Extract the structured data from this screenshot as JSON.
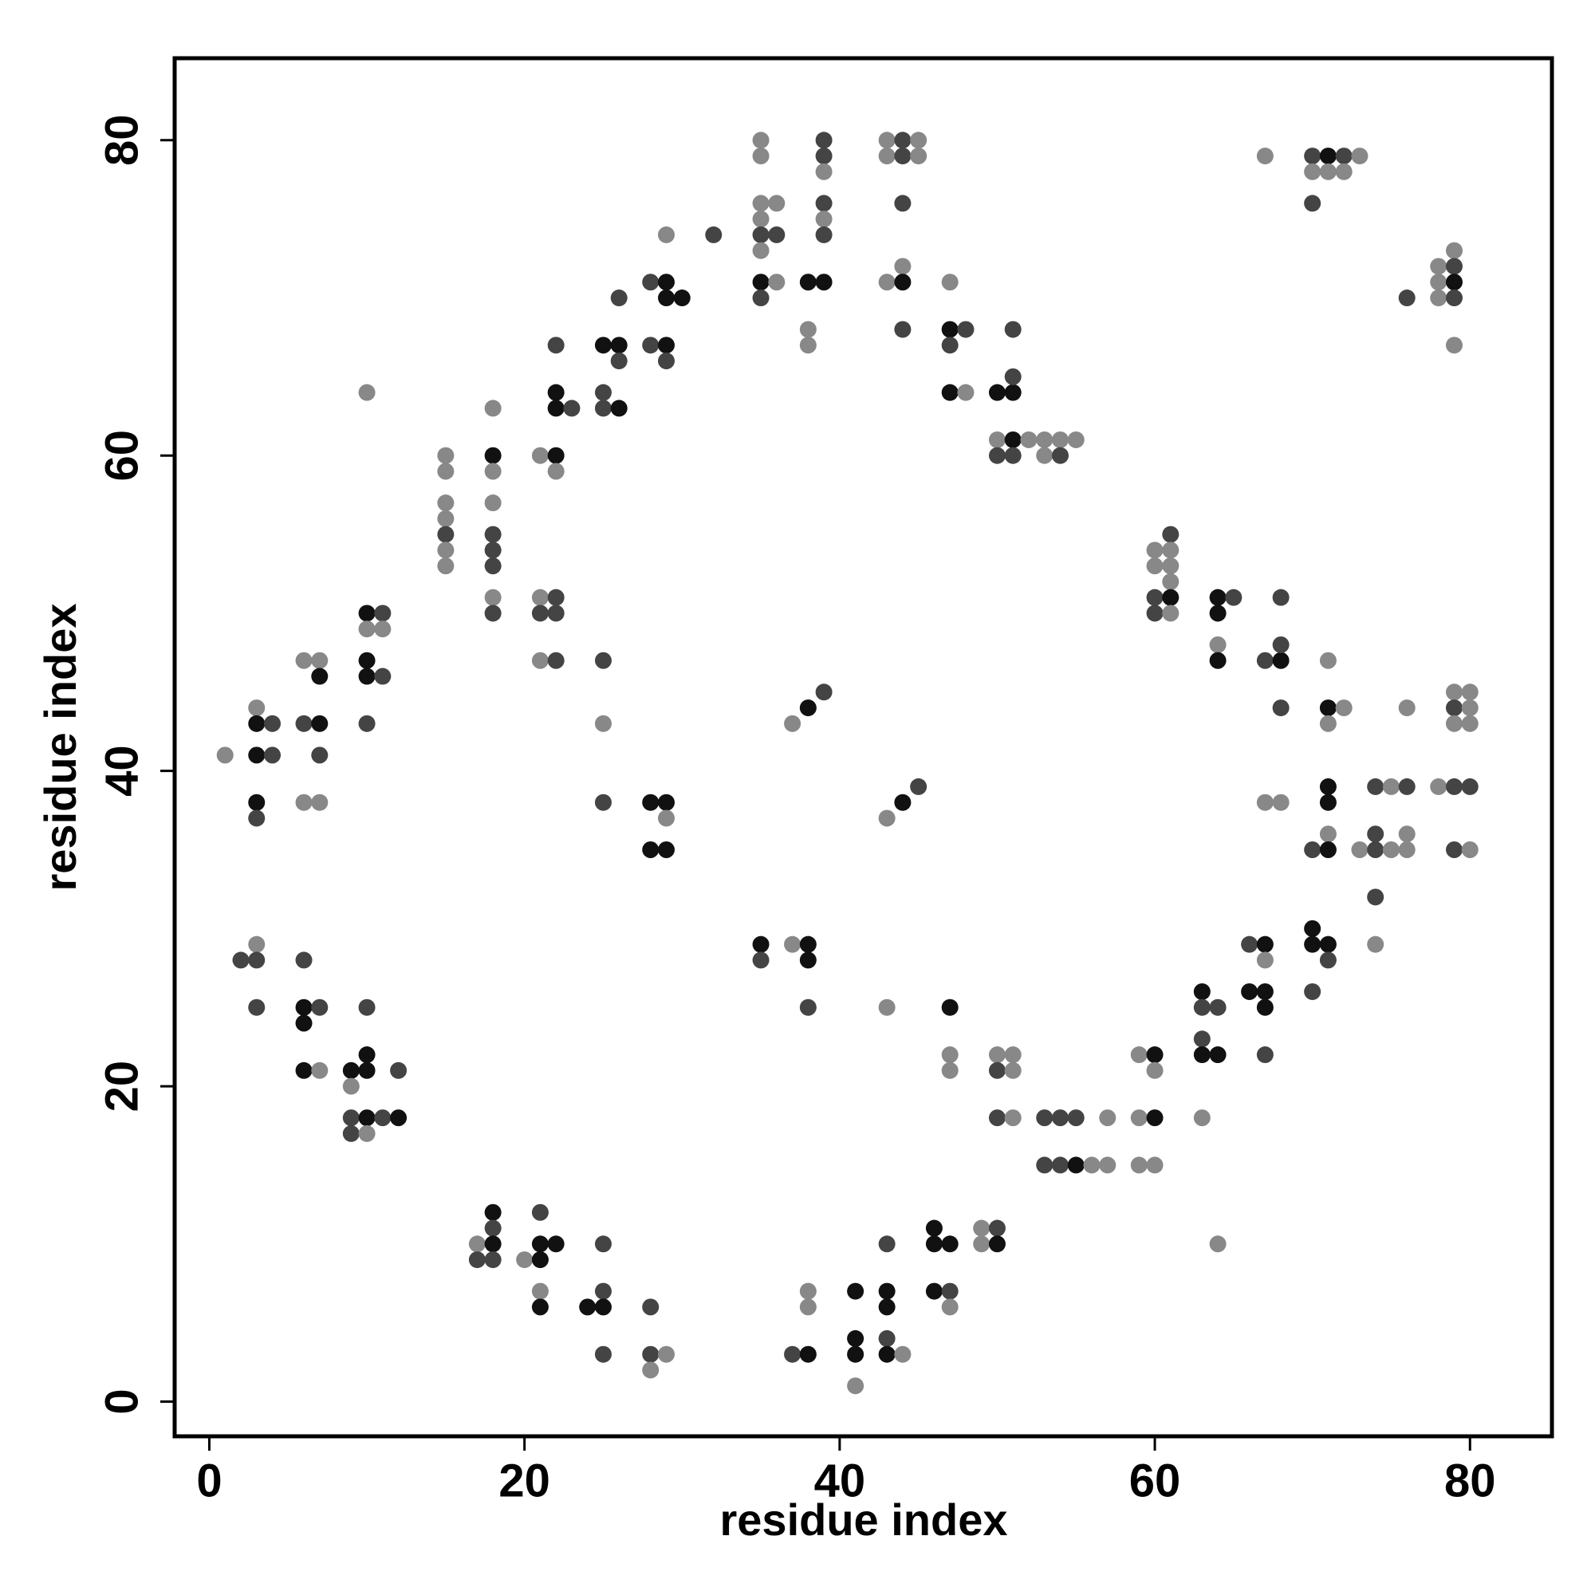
{
  "chart_data": {
    "type": "scatter",
    "xlabel": "residue index",
    "ylabel": "residue index",
    "xlim": [
      -2.2,
      85.2
    ],
    "ylim": [
      -2.2,
      85.2
    ],
    "xticks": [
      0,
      20,
      40,
      60,
      80
    ],
    "yticks": [
      0,
      20,
      40,
      60,
      80
    ],
    "x": [
      1,
      3,
      3,
      4,
      3,
      4,
      3,
      3,
      6,
      7,
      7,
      6,
      7,
      7,
      6,
      7,
      10,
      11,
      10,
      11,
      10,
      10,
      11,
      10,
      10,
      15,
      15,
      15,
      15,
      15,
      15,
      15,
      18,
      18,
      18,
      18,
      18,
      18,
      18,
      18,
      18,
      21,
      22,
      22,
      21,
      22,
      21,
      22,
      21,
      22,
      22,
      22,
      22,
      23,
      25,
      26,
      26,
      25,
      25,
      26,
      26,
      28,
      29,
      29,
      30,
      28,
      29,
      29,
      29,
      32,
      25,
      25,
      25,
      28,
      29,
      29,
      28,
      29,
      35,
      35,
      35,
      36,
      35,
      35,
      36,
      35,
      35,
      36,
      35,
      39,
      39,
      39,
      39,
      39,
      39,
      38,
      39,
      38,
      38,
      37,
      38,
      39,
      43,
      44,
      45,
      43,
      44,
      45,
      44,
      44,
      43,
      44,
      44,
      43,
      44,
      45,
      47,
      47,
      48,
      47,
      47,
      48,
      50,
      51,
      51,
      51,
      50,
      51,
      52,
      53,
      54,
      55,
      50,
      51,
      53,
      54,
      60,
      61,
      61,
      60,
      61,
      61,
      60,
      61,
      60,
      61,
      64,
      65,
      64,
      64,
      64,
      67,
      68,
      68,
      68,
      68,
      67,
      68,
      71,
      71,
      72,
      71,
      71,
      71,
      71,
      70,
      71,
      67,
      70,
      71,
      72,
      73,
      70,
      71,
      72,
      70,
      76,
      78,
      79,
      79,
      78,
      79,
      78,
      79,
      79,
      76,
      79,
      80,
      79,
      80,
      79,
      80,
      74,
      75,
      76,
      78,
      79,
      80,
      74,
      76,
      73,
      74,
      75,
      76,
      79,
      80,
      74,
      74,
      70,
      70,
      71,
      71,
      70,
      66,
      67,
      67,
      66,
      67,
      67,
      67,
      63,
      63,
      64,
      63,
      63,
      64,
      63,
      64,
      59,
      60,
      60,
      59,
      60,
      59,
      60,
      53,
      54,
      55,
      57,
      53,
      54,
      55,
      56,
      57,
      50,
      51,
      50,
      51,
      50,
      51,
      47,
      47,
      47,
      43,
      35,
      35,
      37,
      38,
      38,
      38,
      46,
      46,
      47,
      49,
      50,
      49,
      50,
      46,
      47,
      47,
      43,
      41,
      43,
      41,
      43,
      43,
      41,
      43,
      44,
      41,
      38,
      38,
      37,
      38,
      28,
      28,
      29,
      28,
      25,
      25,
      24,
      25,
      25,
      21,
      21,
      22,
      20,
      21,
      21,
      21,
      18,
      18,
      17,
      18,
      17,
      18,
      2,
      3,
      3,
      3,
      6,
      6,
      7,
      6,
      6,
      7,
      10,
      10,
      9,
      10,
      12,
      9,
      9,
      10,
      11,
      12,
      9,
      10
    ],
    "values": [
      41,
      44,
      43,
      43,
      41,
      41,
      38,
      37,
      47,
      47,
      46,
      43,
      43,
      41,
      38,
      38,
      50,
      50,
      49,
      49,
      47,
      46,
      46,
      43,
      64,
      60,
      59,
      57,
      56,
      55,
      54,
      53,
      63,
      60,
      59,
      57,
      55,
      54,
      53,
      51,
      50,
      60,
      60,
      59,
      51,
      51,
      50,
      50,
      47,
      47,
      67,
      64,
      63,
      63,
      67,
      67,
      66,
      64,
      63,
      63,
      70,
      71,
      71,
      70,
      70,
      67,
      67,
      66,
      74,
      74,
      47,
      43,
      38,
      38,
      38,
      37,
      35,
      35,
      80,
      79,
      76,
      76,
      75,
      74,
      74,
      73,
      71,
      71,
      70,
      80,
      79,
      78,
      76,
      75,
      74,
      71,
      71,
      68,
      67,
      43,
      44,
      45,
      80,
      80,
      80,
      79,
      79,
      79,
      76,
      72,
      71,
      71,
      68,
      37,
      38,
      39,
      71,
      68,
      68,
      67,
      64,
      64,
      64,
      64,
      65,
      68,
      61,
      61,
      61,
      61,
      61,
      61,
      60,
      60,
      60,
      60,
      54,
      55,
      54,
      53,
      53,
      52,
      51,
      51,
      50,
      50,
      51,
      51,
      50,
      48,
      47,
      47,
      47,
      48,
      51,
      44,
      38,
      38,
      47,
      44,
      44,
      43,
      39,
      38,
      36,
      35,
      35,
      79,
      79,
      79,
      79,
      79,
      78,
      78,
      78,
      76,
      70,
      72,
      73,
      72,
      71,
      71,
      70,
      70,
      67,
      44,
      45,
      45,
      44,
      44,
      43,
      43,
      39,
      39,
      39,
      39,
      39,
      39,
      36,
      36,
      35,
      35,
      35,
      35,
      35,
      35,
      32,
      29,
      30,
      29,
      29,
      28,
      26,
      29,
      29,
      28,
      26,
      26,
      25,
      22,
      26,
      25,
      25,
      23,
      22,
      22,
      18,
      10,
      22,
      22,
      21,
      18,
      18,
      15,
      15,
      18,
      18,
      18,
      18,
      15,
      15,
      15,
      15,
      15,
      22,
      22,
      21,
      21,
      18,
      18,
      25,
      22,
      21,
      25,
      29,
      28,
      29,
      29,
      28,
      25,
      11,
      10,
      10,
      11,
      11,
      10,
      10,
      7,
      7,
      6,
      10,
      7,
      7,
      4,
      4,
      6,
      3,
      3,
      3,
      1,
      7,
      6,
      3,
      3,
      6,
      3,
      3,
      2,
      10,
      7,
      6,
      6,
      3,
      12,
      10,
      10,
      9,
      9,
      7,
      6,
      12,
      11,
      10,
      10,
      9,
      9,
      28,
      29,
      28,
      25,
      28,
      25,
      25,
      24,
      21,
      21,
      25,
      22,
      21,
      21,
      21,
      20,
      18,
      18,
      18,
      18,
      17,
      17
    ],
    "colors": [
      "#888",
      "#888",
      "#111",
      "#444",
      "#111",
      "#444",
      "#111",
      "#444",
      "#888",
      "#888",
      "#111",
      "#444",
      "#111",
      "#444",
      "#888",
      "#888",
      "#111",
      "#444",
      "#888",
      "#888",
      "#111",
      "#111",
      "#444",
      "#444",
      "#888",
      "#888",
      "#888",
      "#888",
      "#888",
      "#444",
      "#888",
      "#888",
      "#888",
      "#111",
      "#888",
      "#888",
      "#444",
      "#444",
      "#444",
      "#888",
      "#444",
      "#888",
      "#111",
      "#888",
      "#888",
      "#444",
      "#444",
      "#444",
      "#888",
      "#444",
      "#444",
      "#111",
      "#111",
      "#444",
      "#111",
      "#111",
      "#444",
      "#444",
      "#444",
      "#111",
      "#444",
      "#444",
      "#111",
      "#111",
      "#111",
      "#444",
      "#111",
      "#444",
      "#888",
      "#444",
      "#444",
      "#888",
      "#444",
      "#111",
      "#111",
      "#888",
      "#111",
      "#111",
      "#888",
      "#888",
      "#888",
      "#888",
      "#888",
      "#444",
      "#444",
      "#888",
      "#111",
      "#888",
      "#444",
      "#444",
      "#444",
      "#888",
      "#444",
      "#888",
      "#444",
      "#111",
      "#111",
      "#888",
      "#888",
      "#888",
      "#111",
      "#444",
      "#888",
      "#444",
      "#888",
      "#888",
      "#444",
      "#888",
      "#444",
      "#888",
      "#888",
      "#111",
      "#444",
      "#888",
      "#111",
      "#444",
      "#888",
      "#111",
      "#444",
      "#444",
      "#111",
      "#888",
      "#111",
      "#111",
      "#444",
      "#444",
      "#888",
      "#111",
      "#888",
      "#888",
      "#888",
      "#888",
      "#444",
      "#444",
      "#888",
      "#444",
      "#888",
      "#444",
      "#888",
      "#888",
      "#888",
      "#888",
      "#444",
      "#111",
      "#444",
      "#888",
      "#111",
      "#444",
      "#111",
      "#888",
      "#111",
      "#444",
      "#111",
      "#444",
      "#444",
      "#444",
      "#888",
      "#888",
      "#888",
      "#111",
      "#888",
      "#888",
      "#111",
      "#111",
      "#888",
      "#444",
      "#111",
      "#888",
      "#444",
      "#111",
      "#444",
      "#888",
      "#888",
      "#888",
      "#888",
      "#444",
      "#444",
      "#888",
      "#888",
      "#444",
      "#888",
      "#111",
      "#888",
      "#444",
      "#888",
      "#888",
      "#888",
      "#888",
      "#444",
      "#888",
      "#888",
      "#888",
      "#444",
      "#888",
      "#444",
      "#888",
      "#444",
      "#444",
      "#444",
      "#888",
      "#888",
      "#444",
      "#888",
      "#888",
      "#444",
      "#888",
      "#444",
      "#888",
      "#111",
      "#111",
      "#111",
      "#444",
      "#444",
      "#444",
      "#111",
      "#888",
      "#111",
      "#111",
      "#111",
      "#444",
      "#111",
      "#444",
      "#444",
      "#444",
      "#111",
      "#111",
      "#888",
      "#888",
      "#888",
      "#111",
      "#888",
      "#888",
      "#111",
      "#888",
      "#888",
      "#444",
      "#444",
      "#444",
      "#888",
      "#444",
      "#444",
      "#111",
      "#888",
      "#888",
      "#888",
      "#888",
      "#444",
      "#888",
      "#444",
      "#888",
      "#111",
      "#888",
      "#888",
      "#888",
      "#111",
      "#444",
      "#888",
      "#111",
      "#111",
      "#444",
      "#111",
      "#111",
      "#111",
      "#888",
      "#444",
      "#888",
      "#111",
      "#111",
      "#444",
      "#888",
      "#444",
      "#111",
      "#111",
      "#111",
      "#444",
      "#111",
      "#111",
      "#111",
      "#888",
      "#888",
      "#888",
      "#888",
      "#444",
      "#111",
      "#444",
      "#444",
      "#888",
      "#888",
      "#444",
      "#444",
      "#111",
      "#111",
      "#444",
      "#444",
      "#111",
      "#111",
      "#888",
      "#111",
      "#888",
      "#111",
      "#111",
      "#444",
      "#888",
      "#111",
      "#444",
      "#444",
      "#444",
      "#888",
      "#444",
      "#444",
      "#444",
      "#111",
      "#444",
      "#111",
      "#111",
      "#888",
      "#444",
      "#111",
      "#111",
      "#111",
      "#444",
      "#888",
      "#444",
      "#111",
      "#444",
      "#111",
      "#444",
      "#888"
    ]
  }
}
